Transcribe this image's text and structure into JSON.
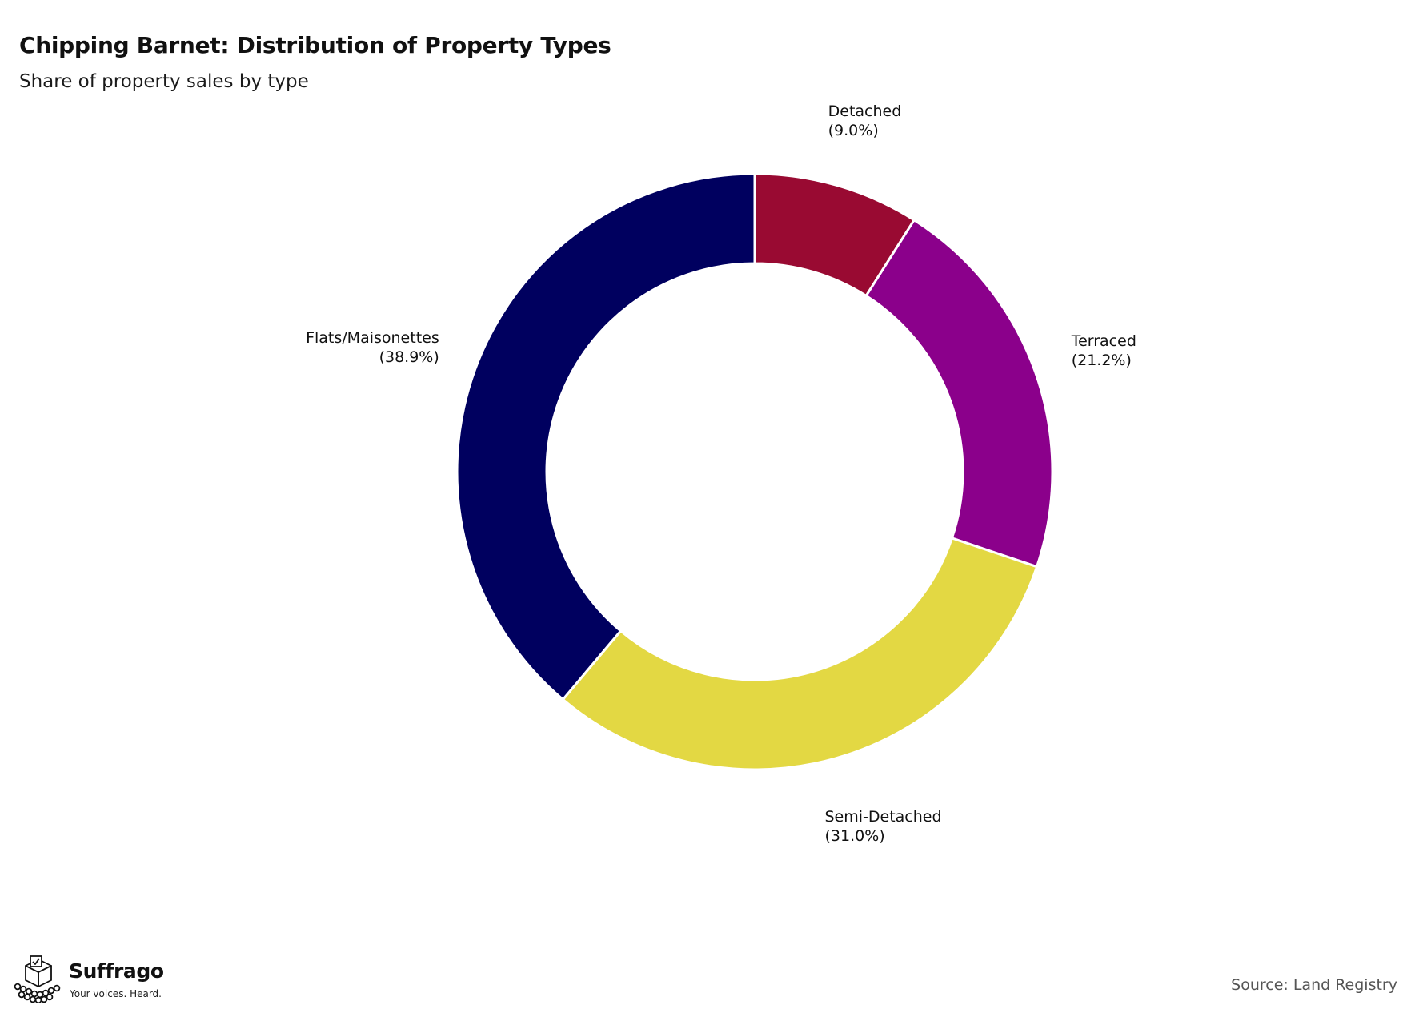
{
  "header": {
    "title": "Chipping Barnet: Distribution of Property Types",
    "subtitle": "Share of property sales by type"
  },
  "chart_data": {
    "type": "pie",
    "style": "donut",
    "title": "Chipping Barnet: Distribution of Property Types",
    "subtitle": "Share of property sales by type",
    "unit": "%",
    "start_angle": "12 o'clock, clockwise",
    "slices": [
      {
        "label": "Detached",
        "value": 9.0,
        "display": "(9.0%)",
        "color": "#990a32"
      },
      {
        "label": "Terraced",
        "value": 21.2,
        "display": "(21.2%)",
        "color": "#8b008b"
      },
      {
        "label": "Semi-Detached",
        "value": 31.0,
        "display": "(31.0%)",
        "color": "#e3d843"
      },
      {
        "label": "Flats/Maisonettes",
        "value": 38.9,
        "display": "(38.9%)",
        "color": "#00005f"
      }
    ],
    "legend": "none (labels placed beside slices)"
  },
  "footer": {
    "brand_name": "Suffrago",
    "brand_tagline": "Your voices. Heard.",
    "source": "Source: Land Registry"
  }
}
